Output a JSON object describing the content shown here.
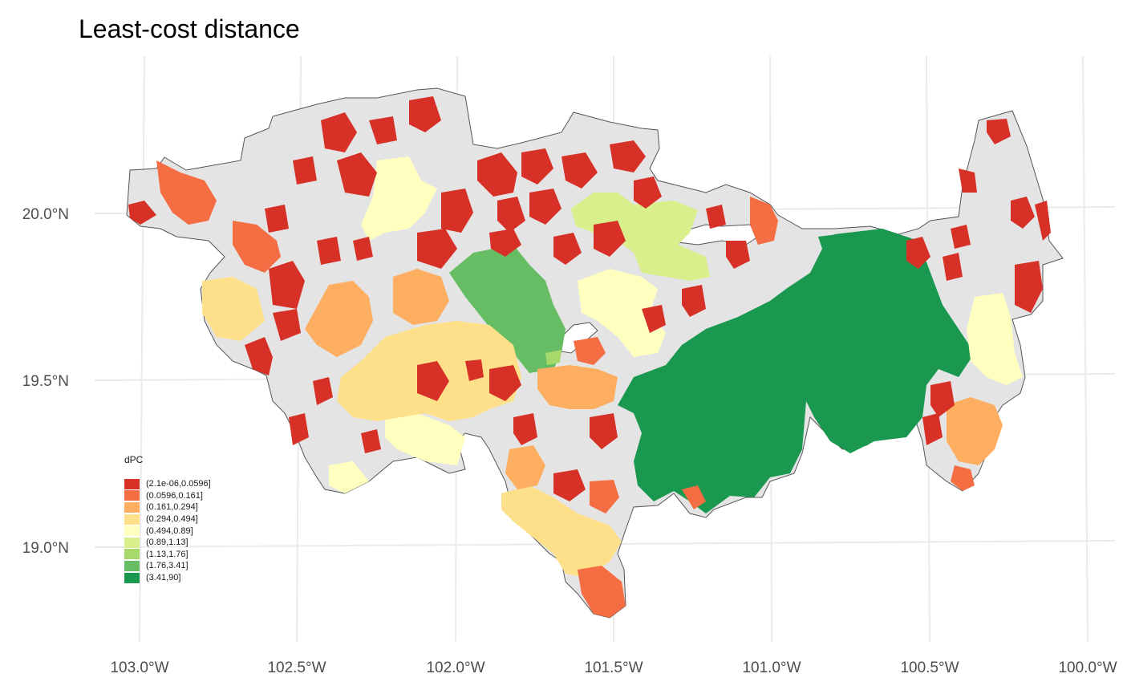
{
  "title": "Least-cost distance",
  "lon_ticks": [
    "103.0°W",
    "102.5°W",
    "102.0°W",
    "101.5°W",
    "101.0°W",
    "100.5°W",
    "100.0°W"
  ],
  "lat_ticks": [
    "20.0°N",
    "19.5°N",
    "19.0°N"
  ],
  "legend": {
    "title": "dPC",
    "items": [
      {
        "label": "(2.1e-06,0.0596]",
        "color": "#d73027"
      },
      {
        "label": "(0.0596,0.161]",
        "color": "#f46d43"
      },
      {
        "label": "(0.161,0.294]",
        "color": "#fdae61"
      },
      {
        "label": "(0.294,0.494]",
        "color": "#fee08b"
      },
      {
        "label": "(0.494,0.89]",
        "color": "#ffffbf"
      },
      {
        "label": "(0.89,1.13]",
        "color": "#d9ef8b"
      },
      {
        "label": "(1.13,1.76]",
        "color": "#a6d96a"
      },
      {
        "label": "(1.76,3.41]",
        "color": "#66bd63"
      },
      {
        "label": "(3.41,90]",
        "color": "#1a9850"
      }
    ]
  },
  "colors": {
    "region_fill": "#e4e4e4",
    "region_stroke": "#555555",
    "graticule": "#ebebeb"
  }
}
